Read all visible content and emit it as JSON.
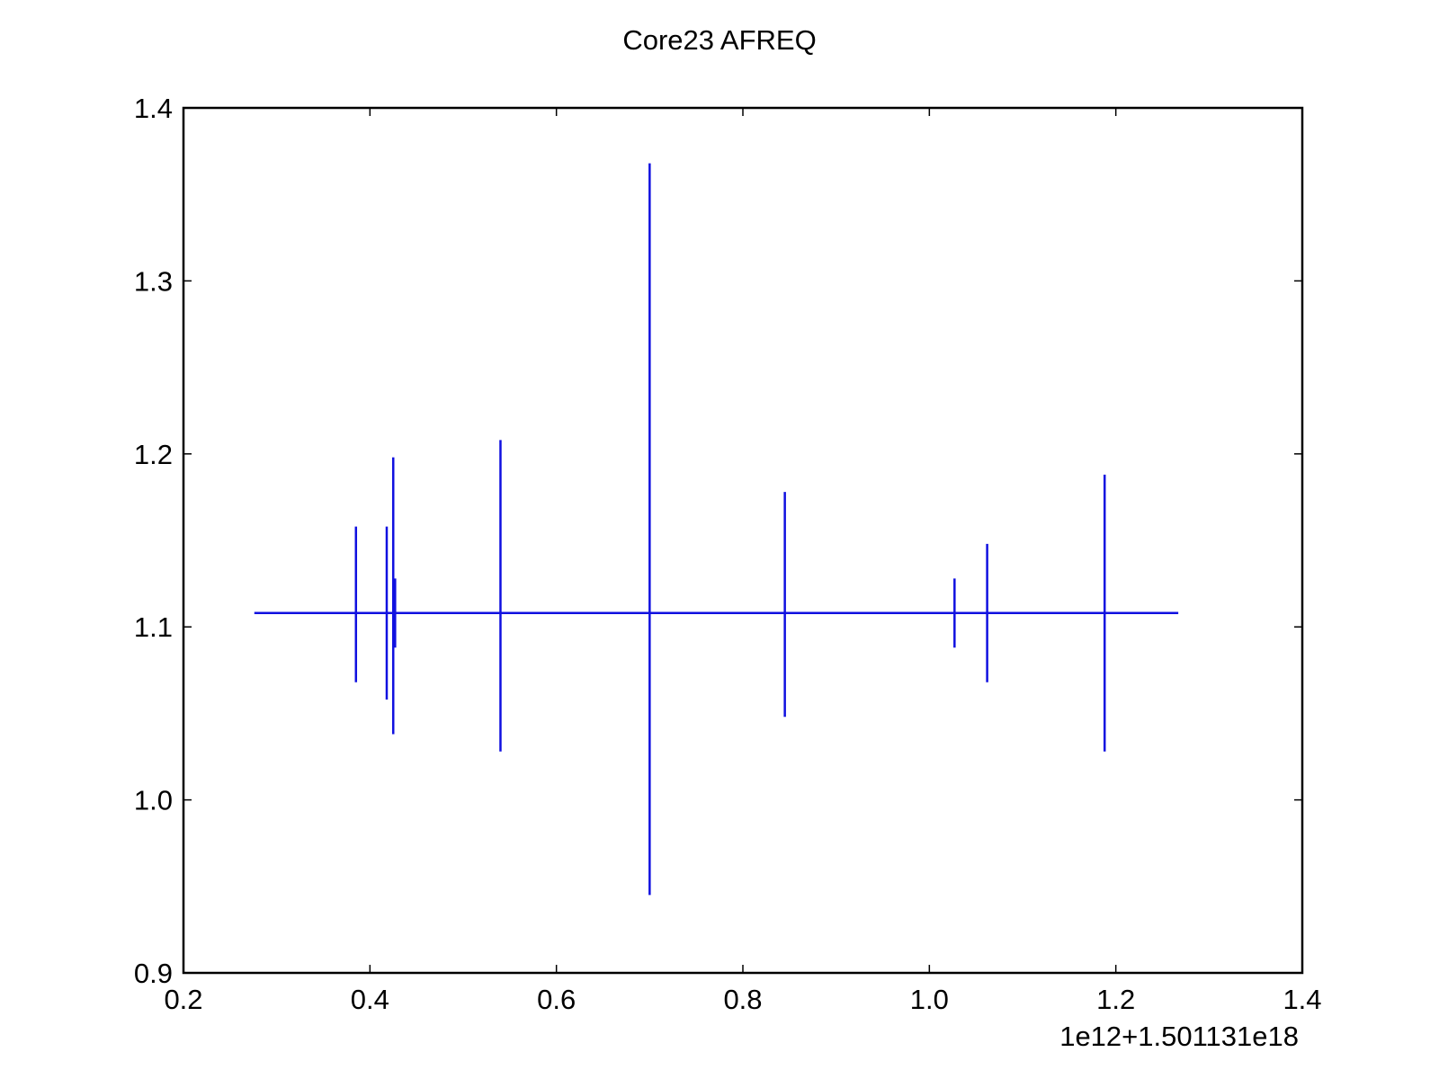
{
  "chart_data": {
    "type": "line",
    "title": "Core23 AFREQ",
    "xlabel": "",
    "ylabel": "",
    "x_offset_label": "1e12+1.501131e18",
    "xlim": [
      0.2,
      1.4
    ],
    "ylim": [
      0.9,
      1.4
    ],
    "xticks": [
      0.2,
      0.4,
      0.6,
      0.8,
      1.0,
      1.2,
      1.4
    ],
    "xtick_labels": [
      "0.2",
      "0.4",
      "0.6",
      "0.8",
      "1.0",
      "1.2",
      "1.4"
    ],
    "yticks": [
      0.9,
      1.0,
      1.1,
      1.2,
      1.3,
      1.4
    ],
    "ytick_labels": [
      "0.9",
      "1.0",
      "1.1",
      "1.2",
      "1.3",
      "1.4"
    ],
    "grid": false,
    "legend": "none",
    "series": [
      {
        "color": "#1010e0",
        "line": {
          "x": [
            0.276,
            1.267
          ],
          "y": [
            1.108,
            1.108
          ]
        },
        "error_bars": [
          {
            "x": 0.385,
            "low": 1.068,
            "high": 1.158
          },
          {
            "x": 0.418,
            "low": 1.058,
            "high": 1.158
          },
          {
            "x": 0.425,
            "low": 1.038,
            "high": 1.198
          },
          {
            "x": 0.427,
            "low": 1.088,
            "high": 1.128
          },
          {
            "x": 0.54,
            "low": 1.028,
            "high": 1.208
          },
          {
            "x": 0.7,
            "low": 0.945,
            "high": 1.368
          },
          {
            "x": 0.845,
            "low": 1.048,
            "high": 1.178
          },
          {
            "x": 1.027,
            "low": 1.088,
            "high": 1.128
          },
          {
            "x": 1.062,
            "low": 1.068,
            "high": 1.148
          },
          {
            "x": 1.188,
            "low": 1.028,
            "high": 1.188
          }
        ]
      }
    ]
  }
}
